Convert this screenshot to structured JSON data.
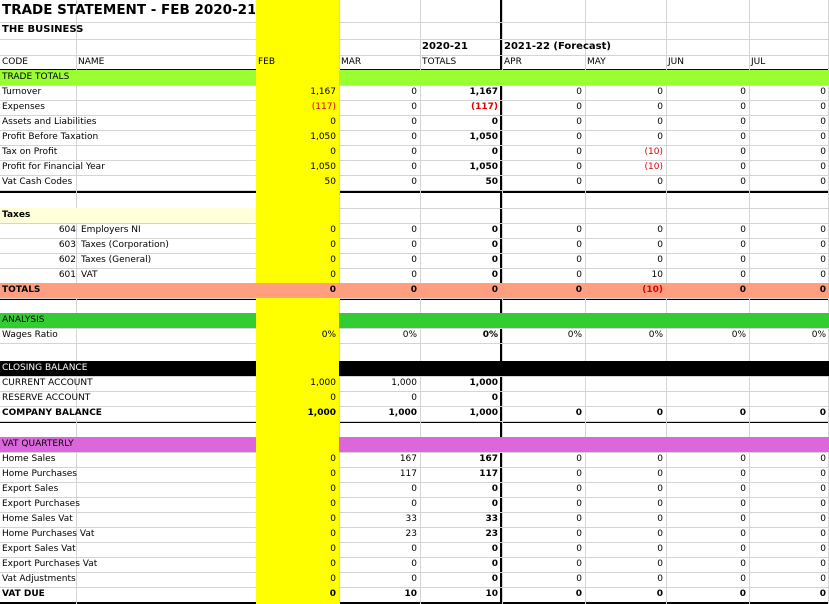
{
  "title": "TRADE STATEMENT - FEB 2020-21",
  "subtitle": "THE BUSINESS",
  "period_labels": {
    "current": "2020-21",
    "forecast": "2021-22 (Forecast)"
  },
  "headers": {
    "code": "CODE",
    "name": "NAME",
    "months": [
      "FEB",
      "MAR"
    ],
    "totals": "TOTALS",
    "forecast_months": [
      "APR",
      "MAY",
      "JUN",
      "JUL"
    ]
  },
  "colors": {
    "highlight": "#ffff00",
    "green": "#99ff33",
    "green_dark": "#33cc33",
    "salmon": "#ff9f80",
    "cream": "#ffffd9",
    "magenta": "#dd66dd",
    "black": "#000000",
    "negative": "#e00000"
  },
  "sections": [
    {
      "id": "trade",
      "band_row": 4,
      "label": "TRADE TOTALS",
      "band": "green",
      "rows": [
        {
          "row": 5,
          "name": "Turnover",
          "values": [
            "1,167",
            "0",
            "1,167",
            "0",
            "0",
            "0",
            "0"
          ]
        },
        {
          "row": 6,
          "name": "Expenses",
          "values": [
            "(117)",
            "0",
            "(117)",
            "0",
            "0",
            "0",
            "0"
          ]
        },
        {
          "row": 7,
          "name": "Assets and Liabilities",
          "values": [
            "0",
            "0",
            "0",
            "0",
            "0",
            "0",
            "0"
          ]
        },
        {
          "row": 8,
          "name": "Profit Before Taxation",
          "values": [
            "1,050",
            "0",
            "1,050",
            "0",
            "0",
            "0",
            "0"
          ]
        },
        {
          "row": 9,
          "name": "Tax on Profit",
          "values": [
            "0",
            "0",
            "0",
            "0",
            "(10)",
            "0",
            "0"
          ]
        },
        {
          "row": 10,
          "name": "Profit for Financial Year",
          "values": [
            "1,050",
            "0",
            "1,050",
            "0",
            "(10)",
            "0",
            "0"
          ]
        },
        {
          "row": 11,
          "name": "Vat Cash Codes",
          "values": [
            "50",
            "0",
            "50",
            "0",
            "0",
            "0",
            "0"
          ]
        }
      ]
    },
    {
      "id": "taxes",
      "band_row": 14,
      "label": "Taxes",
      "band": "cream",
      "rows": [
        {
          "row": 15,
          "code": "604",
          "name": "Employers NI",
          "values": [
            "0",
            "0",
            "0",
            "0",
            "0",
            "0",
            "0"
          ]
        },
        {
          "row": 16,
          "code": "603",
          "name": "Taxes (Corporation)",
          "values": [
            "0",
            "0",
            "0",
            "0",
            "0",
            "0",
            "0"
          ]
        },
        {
          "row": 17,
          "code": "602",
          "name": "Taxes (General)",
          "values": [
            "0",
            "0",
            "0",
            "0",
            "0",
            "0",
            "0"
          ]
        },
        {
          "row": 18,
          "code": "601",
          "name": "VAT",
          "values": [
            "0",
            "0",
            "0",
            "0",
            "10",
            "0",
            "0"
          ]
        },
        {
          "row": 19,
          "name": "TOTALS",
          "band": "salmon",
          "bold": true,
          "values": [
            "0",
            "0",
            "0",
            "0",
            "(10)",
            "0",
            "0"
          ]
        }
      ]
    },
    {
      "id": "analysis",
      "band_row": 21,
      "label": "ANALYSIS",
      "band": "green_dark",
      "rows": [
        {
          "row": 22,
          "name": "Wages Ratio",
          "values": [
            "0%",
            "0%",
            "0%",
            "0%",
            "0%",
            "0%",
            "0%"
          ]
        }
      ]
    },
    {
      "id": "closing",
      "band_row": 24,
      "label": "CLOSING BALANCE",
      "band": "black",
      "rows": [
        {
          "row": 25,
          "name": "CURRENT ACCOUNT",
          "values": [
            "1,000",
            "1,000",
            "1,000",
            "",
            "",
            "",
            ""
          ]
        },
        {
          "row": 26,
          "name": "RESERVE ACCOUNT",
          "values": [
            "0",
            "0",
            "0",
            "",
            "",
            "",
            ""
          ]
        },
        {
          "row": 27,
          "name": "COMPANY BALANCE",
          "bold": true,
          "values": [
            "1,000",
            "1,000",
            "1,000",
            "0",
            "0",
            "0",
            "0"
          ]
        }
      ]
    },
    {
      "id": "vat",
      "band_row": 29,
      "label": "VAT QUARTERLY",
      "band": "magenta",
      "rows": [
        {
          "row": 30,
          "name": "Home Sales",
          "values": [
            "0",
            "167",
            "167",
            "0",
            "0",
            "0",
            "0"
          ]
        },
        {
          "row": 31,
          "name": "Home Purchases",
          "values": [
            "0",
            "117",
            "117",
            "0",
            "0",
            "0",
            "0"
          ]
        },
        {
          "row": 32,
          "name": "Export Sales",
          "values": [
            "0",
            "0",
            "0",
            "0",
            "0",
            "0",
            "0"
          ]
        },
        {
          "row": 33,
          "name": "Export Purchases",
          "values": [
            "0",
            "0",
            "0",
            "0",
            "0",
            "0",
            "0"
          ]
        },
        {
          "row": 34,
          "name": "Home Sales Vat",
          "values": [
            "0",
            "33",
            "33",
            "0",
            "0",
            "0",
            "0"
          ]
        },
        {
          "row": 35,
          "name": "Home Purchases Vat",
          "values": [
            "0",
            "23",
            "23",
            "0",
            "0",
            "0",
            "0"
          ]
        },
        {
          "row": 36,
          "name": "Export Sales Vat",
          "values": [
            "0",
            "0",
            "0",
            "0",
            "0",
            "0",
            "0"
          ]
        },
        {
          "row": 37,
          "name": "Export Purchases Vat",
          "values": [
            "0",
            "0",
            "0",
            "0",
            "0",
            "0",
            "0"
          ]
        },
        {
          "row": 38,
          "name": "Vat Adjustments",
          "values": [
            "0",
            "0",
            "0",
            "0",
            "0",
            "0",
            "0"
          ]
        },
        {
          "row": 39,
          "name": "VAT DUE",
          "bold": true,
          "values": [
            "0",
            "10",
            "10",
            "0",
            "0",
            "0",
            "0"
          ]
        }
      ]
    }
  ]
}
